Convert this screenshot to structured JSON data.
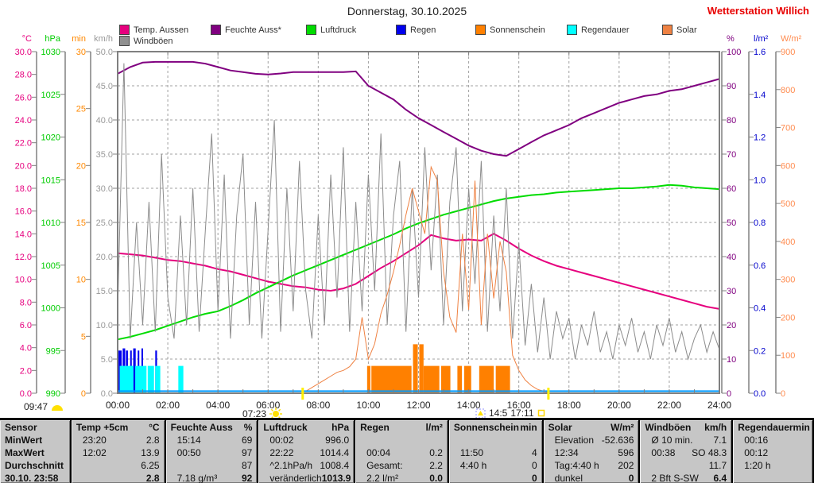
{
  "header": {
    "title": "Donnerstag, 30.10.2025",
    "station": "Wetterstation Willich"
  },
  "legend": {
    "row1": [
      {
        "label": "Temp. Aussen",
        "color": "#e6007e"
      },
      {
        "label": "Feuchte Auss*",
        "color": "#800080"
      },
      {
        "label": "Luftdruck",
        "color": "#00dc00"
      },
      {
        "label": "Regen",
        "color": "#0000ee"
      },
      {
        "label": "Sonnenschein",
        "color": "#ff8000"
      },
      {
        "label": "Regendauer",
        "color": "#00ffff"
      },
      {
        "label": "Solar",
        "color": "#ef8243"
      }
    ],
    "row2": [
      {
        "label": "Windböen",
        "color": "#909090"
      }
    ]
  },
  "axes": {
    "left": [
      {
        "unit": "°C",
        "color": "#e6007e",
        "min": 0,
        "max": 30,
        "decimals": 1,
        "ticks": [
          0,
          2,
          4,
          6,
          8,
          10,
          12,
          14,
          16,
          18,
          20,
          22,
          24,
          26,
          28,
          30
        ]
      },
      {
        "unit": "hPa",
        "color": "#00cc00",
        "min": 990,
        "max": 1030,
        "decimals": 0,
        "ticks": [
          990,
          995,
          1000,
          1005,
          1010,
          1015,
          1020,
          1025,
          1030
        ]
      },
      {
        "unit": "min",
        "color": "#ff8800",
        "min": 0,
        "max": 30,
        "decimals": 0,
        "ticks": [
          0,
          5,
          10,
          15,
          20,
          25,
          30
        ]
      },
      {
        "unit": "km/h",
        "color": "#999999",
        "min": 0,
        "max": 50,
        "decimals": 1,
        "ticks": [
          0,
          5,
          10,
          15,
          20,
          25,
          30,
          35,
          40,
          45,
          50
        ]
      }
    ],
    "right": [
      {
        "unit": "%",
        "color": "#800080",
        "min": 0,
        "max": 100,
        "decimals": 0,
        "ticks": [
          0,
          10,
          20,
          30,
          40,
          50,
          60,
          70,
          80,
          90,
          100
        ]
      },
      {
        "unit": "l/m²",
        "color": "#0000cc",
        "min": 0,
        "max": 1.6,
        "decimals": 1,
        "ticks": [
          0,
          0.2,
          0.4,
          0.6,
          0.8,
          1.0,
          1.2,
          1.4,
          1.6
        ]
      },
      {
        "unit": "W/m²",
        "color": "#ff8c50",
        "min": 0,
        "max": 900,
        "decimals": 0,
        "ticks": [
          0,
          100,
          200,
          300,
          400,
          500,
          600,
          700,
          800,
          900
        ]
      }
    ]
  },
  "x_axis": {
    "labels": [
      "00:00",
      "02:00",
      "04:00",
      "06:00",
      "08:00",
      "10:00",
      "12:00",
      "14:00",
      "16:00",
      "18:00",
      "20:00",
      "22:00",
      "24:00"
    ],
    "hours": [
      0,
      2,
      4,
      6,
      8,
      10,
      12,
      14,
      16,
      18,
      20,
      22,
      24
    ]
  },
  "sun_moon": {
    "moonrise_time": "09:47",
    "sunrise_time": "07:23",
    "moonset_time": "14:5",
    "sunset_time": "17:11",
    "sunrise_hour": 7.38,
    "sunset_hour": 17.18
  },
  "chart_data": {
    "type": "mixed",
    "x_range_hours": [
      0,
      24
    ],
    "series": [
      {
        "name": "Temp. Aussen",
        "kind": "line",
        "axis": "°C",
        "color": "#e6007e",
        "width": 2,
        "t0": 0,
        "dt": 0.5,
        "values": [
          12.3,
          12.2,
          12.1,
          11.9,
          11.7,
          11.6,
          11.4,
          11.2,
          10.9,
          10.7,
          10.4,
          10.1,
          9.8,
          9.6,
          9.4,
          9.3,
          9.1,
          9.0,
          9.2,
          9.6,
          10.3,
          11.0,
          11.6,
          12.3,
          13.0,
          13.9,
          13.6,
          13.4,
          13.5,
          13.4,
          14.0,
          13.4,
          12.7,
          12.1,
          11.6,
          11.2,
          10.9,
          10.6,
          10.3,
          10.0,
          9.7,
          9.4,
          9.1,
          8.8,
          8.5,
          8.2,
          7.9,
          7.6,
          7.4
        ]
      },
      {
        "name": "Feuchte Auss",
        "kind": "line",
        "axis": "%",
        "color": "#800080",
        "width": 2,
        "t0": 0,
        "dt": 0.5,
        "values": [
          93.5,
          95.5,
          96.8,
          97,
          97,
          97,
          97,
          96.5,
          95.5,
          94.5,
          94,
          93.5,
          93.3,
          93.6,
          94,
          94,
          94,
          94,
          94,
          94.2,
          90,
          88,
          86,
          83,
          80.5,
          78.5,
          76.5,
          74.5,
          72.5,
          71,
          70,
          69.5,
          71.5,
          73.5,
          75.5,
          77,
          78.5,
          80.5,
          82,
          83.5,
          85,
          86,
          87,
          87.5,
          88.5,
          89,
          90,
          91,
          92
        ]
      },
      {
        "name": "Luftdruck",
        "kind": "line",
        "axis": "hPa",
        "color": "#00dc00",
        "width": 2,
        "t0": 0,
        "dt": 0.5,
        "values": [
          996.3,
          996.6,
          997.0,
          997.4,
          997.9,
          998.4,
          998.9,
          999.3,
          999.6,
          1000.2,
          1000.9,
          1001.7,
          1002.4,
          1003.1,
          1003.8,
          1004.4,
          1005.0,
          1005.6,
          1006.2,
          1006.8,
          1007.4,
          1008.0,
          1008.6,
          1009.3,
          1009.9,
          1010.4,
          1010.9,
          1011.3,
          1011.7,
          1012.1,
          1012.5,
          1012.8,
          1013.0,
          1013.2,
          1013.3,
          1013.5,
          1013.6,
          1013.7,
          1013.8,
          1013.9,
          1014.0,
          1014.0,
          1014.1,
          1014.2,
          1014.4,
          1014.3,
          1014.1,
          1014.0,
          1013.9
        ]
      },
      {
        "name": "Windböen",
        "kind": "line",
        "axis": "km/h",
        "color": "#8c8c8c",
        "width": 1,
        "t0": 0,
        "dt": 0.25,
        "values": [
          12,
          48.3,
          8,
          25,
          10,
          28,
          9,
          35,
          14,
          8,
          26,
          10,
          30,
          9,
          24,
          38,
          12,
          32,
          8,
          26,
          35,
          10,
          28,
          8,
          24,
          40,
          9,
          30,
          12,
          34,
          15,
          8,
          26,
          10,
          32,
          14,
          36,
          9,
          28,
          12,
          32,
          15,
          38,
          10,
          26,
          34,
          9,
          30,
          14,
          36,
          18,
          32,
          10,
          28,
          36,
          12,
          30,
          16,
          34,
          9,
          26,
          12,
          30,
          8,
          22,
          7,
          16,
          6,
          14,
          5,
          12,
          8,
          11,
          5,
          10,
          7,
          12,
          6,
          9,
          5,
          10,
          7,
          11,
          6,
          9,
          5,
          10,
          7,
          11,
          6,
          9,
          5,
          8,
          10,
          6,
          9,
          6.4
        ]
      },
      {
        "name": "Solar",
        "kind": "line",
        "axis": "W/m²",
        "color": "#ef8243",
        "width": 1,
        "t0": 7.5,
        "dt": 0.25,
        "values": [
          5,
          15,
          25,
          35,
          45,
          55,
          60,
          70,
          90,
          200,
          90,
          130,
          210,
          260,
          320,
          390,
          470,
          540,
          480,
          420,
          596,
          560,
          320,
          200,
          160,
          420,
          220,
          560,
          180,
          420,
          250,
          400,
          320,
          100,
          60,
          35,
          20,
          10,
          5,
          0
        ]
      },
      {
        "name": "Regen-Basislinie",
        "kind": "flatline",
        "axis": "l/m²",
        "color": "#0099ff",
        "width": 2,
        "value": 0.01
      }
    ],
    "bars": [
      {
        "name": "Regen",
        "axis": "l/m²",
        "color": "#0000ee",
        "segments": [
          {
            "t": 0.03,
            "w": 0.13,
            "v": 0.2
          },
          {
            "t": 0.2,
            "w": 0.1,
            "v": 0.21
          },
          {
            "t": 0.33,
            "w": 0.08,
            "v": 0.2
          },
          {
            "t": 0.5,
            "w": 0.05,
            "v": 0.2
          },
          {
            "t": 0.62,
            "w": 0.1,
            "v": 0.21
          },
          {
            "t": 0.8,
            "w": 0.06,
            "v": 0.2
          },
          {
            "t": 0.95,
            "w": 0.05,
            "v": 0.21
          },
          {
            "t": 1.5,
            "w": 0.07,
            "v": 0.2
          }
        ]
      },
      {
        "name": "Regendauer",
        "axis": "min",
        "color": "#00ffff",
        "segments": [
          {
            "t": 0.08,
            "w": 0.55,
            "v": 2.4
          },
          {
            "t": 0.7,
            "w": 0.45,
            "v": 2.4
          },
          {
            "t": 1.2,
            "w": 0.25,
            "v": 2.4
          },
          {
            "t": 1.5,
            "w": 0.2,
            "v": 2.4
          },
          {
            "t": 2.42,
            "w": 0.2,
            "v": 2.4
          }
        ]
      },
      {
        "name": "Sonnenschein",
        "axis": "min",
        "color": "#ff8000",
        "segments": [
          {
            "t": 9.95,
            "w": 0.13,
            "v": 2.4
          },
          {
            "t": 10.12,
            "w": 1.6,
            "v": 2.4
          },
          {
            "t": 11.78,
            "w": 0.19,
            "v": 4.3
          },
          {
            "t": 12.03,
            "w": 0.17,
            "v": 4.3
          },
          {
            "t": 12.2,
            "w": 0.63,
            "v": 2.4
          },
          {
            "t": 12.9,
            "w": 0.37,
            "v": 2.4
          },
          {
            "t": 13.55,
            "w": 0.18,
            "v": 2.4
          },
          {
            "t": 13.82,
            "w": 0.28,
            "v": 2.4
          },
          {
            "t": 14.42,
            "w": 0.58,
            "v": 2.4
          },
          {
            "t": 15.08,
            "w": 0.57,
            "v": 2.4
          }
        ]
      }
    ],
    "grid": {
      "h_divisions": 10,
      "v_step_hours": 2,
      "style": "dashed"
    },
    "legend_position": "top"
  },
  "table": {
    "corner_label": "Sensor",
    "row_labels": [
      "MinWert",
      "MaxWert",
      "Durchschnitt",
      "30.10. 23:58"
    ],
    "columns": [
      {
        "name": "Temp +5cm",
        "unit": "°C",
        "cells": [
          [
            "23:20",
            "2.8"
          ],
          [
            "12:02",
            "13.9"
          ],
          [
            "",
            "6.25"
          ],
          [
            "",
            "2.8"
          ]
        ]
      },
      {
        "name": "Feuchte Auss",
        "unit": "%",
        "cells": [
          [
            "15:14",
            "69"
          ],
          [
            "00:50",
            "97"
          ],
          [
            "",
            "87"
          ],
          [
            "7.18 g/m³",
            "92"
          ]
        ]
      },
      {
        "name": "Luftdruck",
        "unit": "hPa",
        "cells": [
          [
            "00:02",
            "996.0"
          ],
          [
            "22:22",
            "1014.4"
          ],
          [
            "^2.1hPa/h",
            "1008.4"
          ],
          [
            "veränderlich",
            "1013.9"
          ]
        ]
      },
      {
        "name": "Regen",
        "unit": "l/m²",
        "cells": [
          [
            "",
            ""
          ],
          [
            "00:04",
            "0.2"
          ],
          [
            "Gesamt:",
            "2.2"
          ],
          [
            "2.2 l/m²",
            "0.0"
          ]
        ]
      },
      {
        "name": "Sonnenschein",
        "unit": "min",
        "cells": [
          [
            "",
            ""
          ],
          [
            "11:50",
            "4"
          ],
          [
            "4:40 h",
            "0"
          ],
          [
            "",
            "0"
          ]
        ]
      },
      {
        "name": "Solar",
        "unit": "W/m²",
        "cells": [
          [
            "Elevation",
            "-52.636"
          ],
          [
            "12:34",
            "596"
          ],
          [
            "Tag:4:40 h",
            "202"
          ],
          [
            "dunkel",
            "0"
          ]
        ]
      },
      {
        "name": "Windböen",
        "unit": "km/h",
        "cells": [
          [
            "Ø 10 min.",
            "7.1"
          ],
          [
            "00:38",
            "SO 48.3"
          ],
          [
            "",
            "11.7"
          ],
          [
            "2 Bft S-SW",
            "6.4"
          ]
        ]
      },
      {
        "name": "Regendauer",
        "unit": "min",
        "cells": [
          [
            "00:16",
            ""
          ],
          [
            "00:12",
            ""
          ],
          [
            "1:20 h",
            ""
          ],
          [
            "",
            ""
          ]
        ]
      }
    ]
  }
}
